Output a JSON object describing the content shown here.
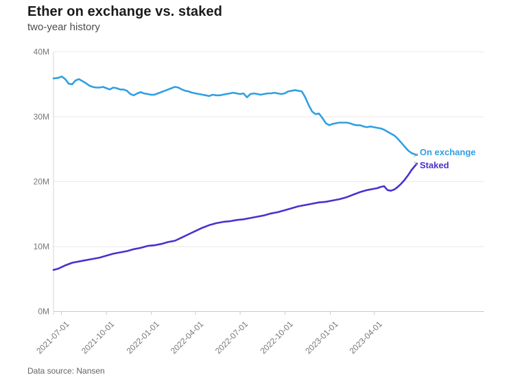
{
  "header": {
    "title": "Ether on exchange vs. staked",
    "subtitle": "two-year history"
  },
  "footer": {
    "source_label": "Data source: Nansen"
  },
  "legend": {
    "items": [
      {
        "label": "On exchange",
        "color": "#2f9fe2"
      },
      {
        "label": "Staked",
        "color": "#4632cf"
      }
    ]
  },
  "chart_data": {
    "type": "line",
    "title": "Ether on exchange vs. staked",
    "subtitle": "two-year history",
    "source": "Nansen",
    "y_unit": "millions of ETH",
    "ylim": [
      0,
      40
    ],
    "y_ticks": [
      {
        "value": 0,
        "label": "0M"
      },
      {
        "value": 10,
        "label": "10M"
      },
      {
        "value": 20,
        "label": "20M"
      },
      {
        "value": 30,
        "label": "30M"
      },
      {
        "value": 40,
        "label": "40M"
      }
    ],
    "x_ticks": [
      "2021-07-01",
      "2021-10-01",
      "2022-01-01",
      "2022-04-01",
      "2022-07-01",
      "2022-10-01",
      "2023-01-01",
      "2023-04-01"
    ],
    "x_domain": [
      "2021-06-15",
      "2023-06-27"
    ],
    "grid": "horizontal",
    "legend_position": "line-end-labels-right",
    "series": [
      {
        "name": "On exchange",
        "color": "#2f9fe2",
        "points": [
          [
            "2021-06-15",
            35.9
          ],
          [
            "2021-06-25",
            36.0
          ],
          [
            "2021-07-02",
            36.2
          ],
          [
            "2021-07-09",
            35.8
          ],
          [
            "2021-07-16",
            35.1
          ],
          [
            "2021-07-23",
            35.0
          ],
          [
            "2021-07-30",
            35.6
          ],
          [
            "2021-08-06",
            35.8
          ],
          [
            "2021-08-13",
            35.5
          ],
          [
            "2021-08-20",
            35.2
          ],
          [
            "2021-08-27",
            34.8
          ],
          [
            "2021-09-03",
            34.6
          ],
          [
            "2021-09-10",
            34.5
          ],
          [
            "2021-09-17",
            34.5
          ],
          [
            "2021-09-24",
            34.6
          ],
          [
            "2021-10-01",
            34.4
          ],
          [
            "2021-10-08",
            34.2
          ],
          [
            "2021-10-15",
            34.5
          ],
          [
            "2021-10-22",
            34.4
          ],
          [
            "2021-10-29",
            34.2
          ],
          [
            "2021-11-05",
            34.2
          ],
          [
            "2021-11-12",
            34.0
          ],
          [
            "2021-11-19",
            33.5
          ],
          [
            "2021-11-26",
            33.3
          ],
          [
            "2021-12-03",
            33.6
          ],
          [
            "2021-12-10",
            33.8
          ],
          [
            "2021-12-17",
            33.6
          ],
          [
            "2021-12-24",
            33.5
          ],
          [
            "2021-12-31",
            33.4
          ],
          [
            "2022-01-07",
            33.4
          ],
          [
            "2022-01-14",
            33.6
          ],
          [
            "2022-01-21",
            33.8
          ],
          [
            "2022-01-28",
            34.0
          ],
          [
            "2022-02-04",
            34.2
          ],
          [
            "2022-02-11",
            34.4
          ],
          [
            "2022-02-18",
            34.6
          ],
          [
            "2022-02-25",
            34.5
          ],
          [
            "2022-03-04",
            34.2
          ],
          [
            "2022-03-11",
            34.0
          ],
          [
            "2022-03-18",
            33.9
          ],
          [
            "2022-03-25",
            33.7
          ],
          [
            "2022-04-01",
            33.6
          ],
          [
            "2022-04-08",
            33.5
          ],
          [
            "2022-04-15",
            33.4
          ],
          [
            "2022-04-22",
            33.3
          ],
          [
            "2022-04-29",
            33.2
          ],
          [
            "2022-05-06",
            33.4
          ],
          [
            "2022-05-13",
            33.3
          ],
          [
            "2022-05-20",
            33.3
          ],
          [
            "2022-05-27",
            33.4
          ],
          [
            "2022-06-03",
            33.5
          ],
          [
            "2022-06-10",
            33.6
          ],
          [
            "2022-06-17",
            33.7
          ],
          [
            "2022-06-24",
            33.6
          ],
          [
            "2022-07-01",
            33.5
          ],
          [
            "2022-07-08",
            33.6
          ],
          [
            "2022-07-15",
            33.0
          ],
          [
            "2022-07-22",
            33.5
          ],
          [
            "2022-07-29",
            33.6
          ],
          [
            "2022-08-05",
            33.5
          ],
          [
            "2022-08-12",
            33.4
          ],
          [
            "2022-08-19",
            33.5
          ],
          [
            "2022-08-26",
            33.6
          ],
          [
            "2022-09-02",
            33.6
          ],
          [
            "2022-09-09",
            33.7
          ],
          [
            "2022-09-16",
            33.6
          ],
          [
            "2022-09-23",
            33.5
          ],
          [
            "2022-09-30",
            33.6
          ],
          [
            "2022-10-07",
            33.9
          ],
          [
            "2022-10-14",
            34.0
          ],
          [
            "2022-10-21",
            34.1
          ],
          [
            "2022-10-28",
            34.0
          ],
          [
            "2022-11-04",
            33.9
          ],
          [
            "2022-11-11",
            33.0
          ],
          [
            "2022-11-18",
            31.8
          ],
          [
            "2022-11-25",
            30.8
          ],
          [
            "2022-12-02",
            30.4
          ],
          [
            "2022-12-09",
            30.5
          ],
          [
            "2022-12-16",
            29.8
          ],
          [
            "2022-12-23",
            29.0
          ],
          [
            "2022-12-30",
            28.7
          ],
          [
            "2023-01-06",
            28.9
          ],
          [
            "2023-01-13",
            29.0
          ],
          [
            "2023-01-20",
            29.1
          ],
          [
            "2023-01-27",
            29.1
          ],
          [
            "2023-02-03",
            29.1
          ],
          [
            "2023-02-10",
            29.0
          ],
          [
            "2023-02-17",
            28.8
          ],
          [
            "2023-02-24",
            28.7
          ],
          [
            "2023-03-03",
            28.7
          ],
          [
            "2023-03-10",
            28.5
          ],
          [
            "2023-03-17",
            28.4
          ],
          [
            "2023-03-24",
            28.5
          ],
          [
            "2023-03-31",
            28.4
          ],
          [
            "2023-04-07",
            28.3
          ],
          [
            "2023-04-14",
            28.2
          ],
          [
            "2023-04-21",
            28.0
          ],
          [
            "2023-04-28",
            27.7
          ],
          [
            "2023-05-05",
            27.4
          ],
          [
            "2023-05-12",
            27.1
          ],
          [
            "2023-05-19",
            26.6
          ],
          [
            "2023-05-26",
            26.0
          ],
          [
            "2023-06-02",
            25.4
          ],
          [
            "2023-06-09",
            24.8
          ],
          [
            "2023-06-16",
            24.4
          ],
          [
            "2023-06-27",
            24.1
          ]
        ]
      },
      {
        "name": "Staked",
        "color": "#4632cf",
        "points": [
          [
            "2021-06-15",
            6.4
          ],
          [
            "2021-06-25",
            6.6
          ],
          [
            "2021-07-09",
            7.1
          ],
          [
            "2021-07-23",
            7.5
          ],
          [
            "2021-08-06",
            7.7
          ],
          [
            "2021-08-20",
            7.9
          ],
          [
            "2021-09-03",
            8.1
          ],
          [
            "2021-09-17",
            8.3
          ],
          [
            "2021-10-01",
            8.6
          ],
          [
            "2021-10-15",
            8.9
          ],
          [
            "2021-10-29",
            9.1
          ],
          [
            "2021-11-12",
            9.3
          ],
          [
            "2021-11-26",
            9.6
          ],
          [
            "2021-12-10",
            9.8
          ],
          [
            "2021-12-24",
            10.1
          ],
          [
            "2022-01-07",
            10.2
          ],
          [
            "2022-01-21",
            10.4
          ],
          [
            "2022-02-04",
            10.7
          ],
          [
            "2022-02-18",
            10.9
          ],
          [
            "2022-03-04",
            11.4
          ],
          [
            "2022-03-18",
            11.9
          ],
          [
            "2022-04-01",
            12.4
          ],
          [
            "2022-04-15",
            12.9
          ],
          [
            "2022-04-29",
            13.3
          ],
          [
            "2022-05-13",
            13.6
          ],
          [
            "2022-05-27",
            13.8
          ],
          [
            "2022-06-10",
            13.9
          ],
          [
            "2022-06-24",
            14.1
          ],
          [
            "2022-07-08",
            14.2
          ],
          [
            "2022-07-22",
            14.4
          ],
          [
            "2022-08-05",
            14.6
          ],
          [
            "2022-08-19",
            14.8
          ],
          [
            "2022-09-02",
            15.1
          ],
          [
            "2022-09-16",
            15.3
          ],
          [
            "2022-09-30",
            15.6
          ],
          [
            "2022-10-14",
            15.9
          ],
          [
            "2022-10-28",
            16.2
          ],
          [
            "2022-11-11",
            16.4
          ],
          [
            "2022-11-25",
            16.6
          ],
          [
            "2022-12-09",
            16.8
          ],
          [
            "2022-12-23",
            16.9
          ],
          [
            "2023-01-06",
            17.1
          ],
          [
            "2023-01-20",
            17.3
          ],
          [
            "2023-02-03",
            17.6
          ],
          [
            "2023-02-17",
            18.0
          ],
          [
            "2023-03-03",
            18.4
          ],
          [
            "2023-03-17",
            18.7
          ],
          [
            "2023-03-31",
            18.9
          ],
          [
            "2023-04-07",
            19.0
          ],
          [
            "2023-04-14",
            19.2
          ],
          [
            "2023-04-21",
            19.3
          ],
          [
            "2023-04-28",
            18.7
          ],
          [
            "2023-05-05",
            18.6
          ],
          [
            "2023-05-12",
            18.8
          ],
          [
            "2023-05-19",
            19.2
          ],
          [
            "2023-05-26",
            19.7
          ],
          [
            "2023-06-02",
            20.3
          ],
          [
            "2023-06-09",
            21.0
          ],
          [
            "2023-06-16",
            21.8
          ],
          [
            "2023-06-27",
            22.8
          ]
        ]
      }
    ]
  }
}
